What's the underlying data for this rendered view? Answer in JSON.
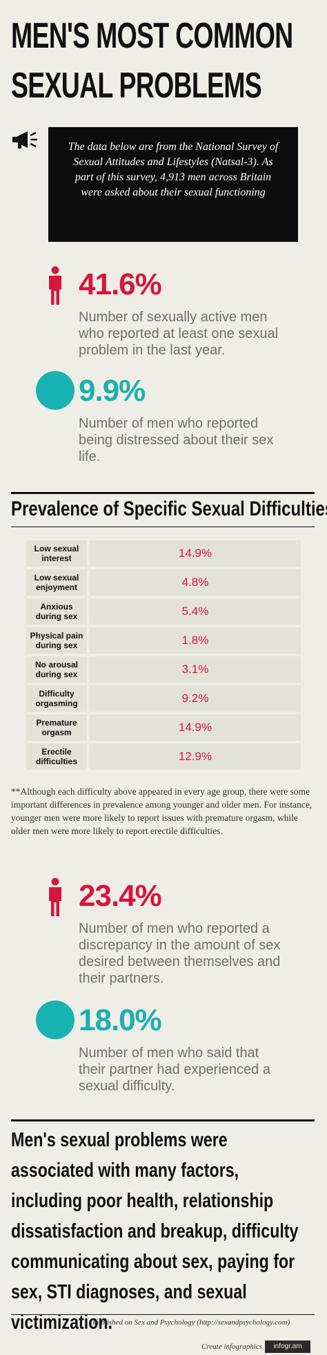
{
  "title": {
    "line1": "MEN'S MOST COMMON",
    "line2": "SEXUAL PROBLEMS"
  },
  "intro": "The data below are from the National Survey of Sexual Attitudes and Lifestyles (Natsal-3). As part of this survey, 4,913 men across Britain were asked about their sexual functioning",
  "stats_top": [
    {
      "value": "41.6%",
      "description": "Number of sexually active men who reported at least one sexual problem in the last year.",
      "icon": "person-icon",
      "color": "#d6163d"
    },
    {
      "value": "9.9%",
      "description": "Number of men who reported being distressed about their sex life.",
      "icon": "circle-icon",
      "color": "#1ab0b0"
    }
  ],
  "chart_data": {
    "type": "table",
    "title": "Prevalence of Specific Sexual Difficulties",
    "categories": [
      "Low sexual interest",
      "Low sexual enjoyment",
      "Anxious during sex",
      "Physical pain during sex",
      "No arousal during sex",
      "Difficulty orgasming",
      "Premature orgasm",
      "Erectile difficulties"
    ],
    "values": [
      14.9,
      4.8,
      5.4,
      1.8,
      3.1,
      9.2,
      14.9,
      12.9
    ],
    "value_labels": [
      "14.9%",
      "4.8%",
      "5.4%",
      "1.8%",
      "3.1%",
      "9.2%",
      "14.9%",
      "12.9%"
    ]
  },
  "footnote": "**Although each difficulty above appeared in every age group, there were some important differences in prevalence among younger and older men. For instance, younger men were more likely to report issues with premature orgasm, while older men were more likely to report erectile difficulties.",
  "stats_bottom": [
    {
      "value": "23.4%",
      "description": "Number of men who reported a discrepancy in the amount of sex desired between themselves and their partners.",
      "icon": "person-icon",
      "color": "#d6163d"
    },
    {
      "value": "18.0%",
      "description": "Number of men who said that their partner had experienced a sexual difficulty.",
      "icon": "circle-icon",
      "color": "#1ab0b0"
    }
  ],
  "conclusion": "Men's sexual problems were associated with many factors, including poor health, relationship dissatisfaction and breakup, difficulty communicating about sex, paying for sex, STI diagnoses, and sexual victimization.",
  "footer": {
    "published": "Published on Sex and Psychology (http://sexandpsychology.com)",
    "create": "Create infographics",
    "brand": "infogr.am"
  }
}
